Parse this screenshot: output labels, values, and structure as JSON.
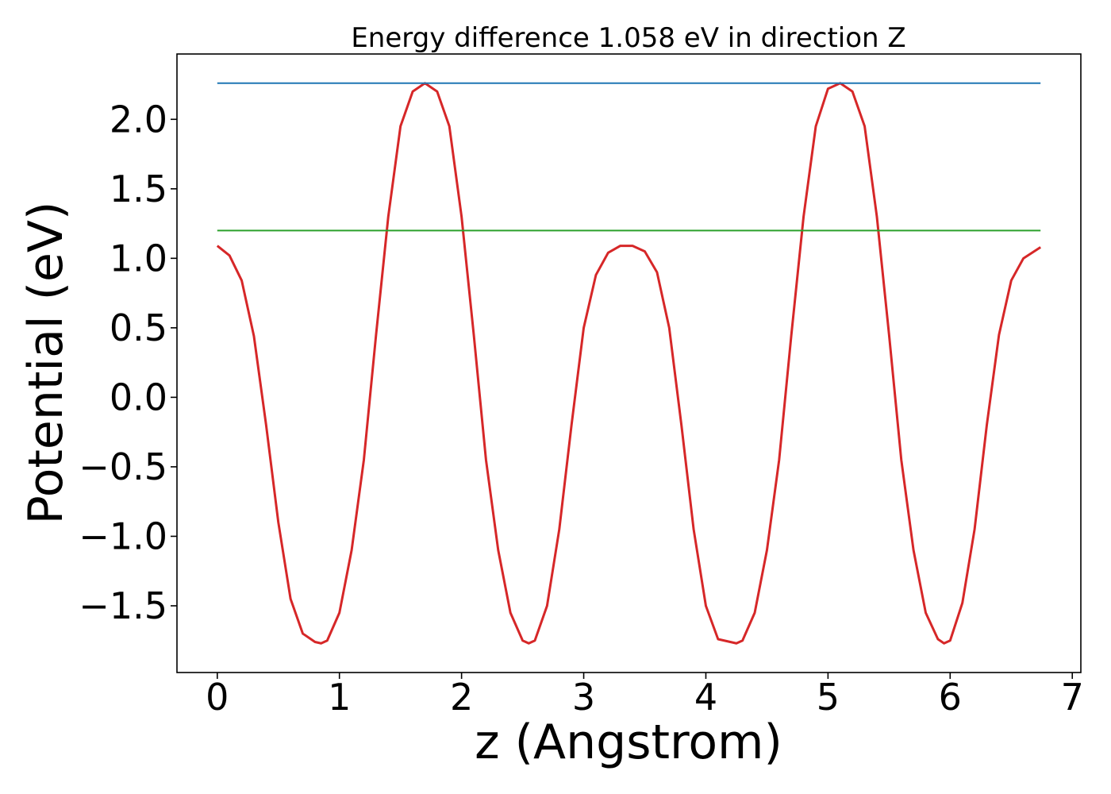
{
  "chart_data": {
    "type": "line",
    "title": "Energy difference 1.058 eV in direction Z",
    "xlabel": "z (Angstrom)",
    "ylabel": "Potential (eV)",
    "xlim": [
      -0.33,
      7.07
    ],
    "ylim": [
      -1.98,
      2.47
    ],
    "x_ticks": [
      0,
      1,
      2,
      3,
      4,
      5,
      6,
      7
    ],
    "x_tick_labels": [
      "0",
      "1",
      "2",
      "3",
      "4",
      "5",
      "6",
      "7"
    ],
    "y_ticks": [
      -1.5,
      -1.0,
      -0.5,
      0.0,
      0.5,
      1.0,
      1.5,
      2.0
    ],
    "y_tick_labels": [
      "−1.5",
      "−1.0",
      "−0.5",
      "0.0",
      "0.5",
      "1.0",
      "1.5",
      "2.0"
    ],
    "grid": false,
    "legend": "none",
    "series": [
      {
        "color": "#d62728",
        "x": [
          0.0,
          0.1,
          0.2,
          0.3,
          0.4,
          0.5,
          0.6,
          0.7,
          0.8,
          0.85,
          0.9,
          1.0,
          1.1,
          1.2,
          1.3,
          1.4,
          1.5,
          1.6,
          1.7,
          1.8,
          1.9,
          2.0,
          2.1,
          2.2,
          2.3,
          2.4,
          2.5,
          2.55,
          2.6,
          2.7,
          2.8,
          2.9,
          3.0,
          3.1,
          3.2,
          3.3,
          3.4,
          3.5,
          3.6,
          3.7,
          3.8,
          3.9,
          4.0,
          4.1,
          4.2,
          4.25,
          4.3,
          4.4,
          4.5,
          4.6,
          4.7,
          4.8,
          4.9,
          5.0,
          5.1,
          5.2,
          5.3,
          5.4,
          5.5,
          5.6,
          5.7,
          5.8,
          5.9,
          5.95,
          6.0,
          6.1,
          6.2,
          6.3,
          6.4,
          6.5,
          6.6,
          6.74
        ],
        "y": [
          1.09,
          1.02,
          0.84,
          0.44,
          -0.2,
          -0.9,
          -1.45,
          -1.7,
          -1.76,
          -1.77,
          -1.75,
          -1.55,
          -1.1,
          -0.45,
          0.45,
          1.3,
          1.95,
          2.2,
          2.26,
          2.2,
          1.95,
          1.3,
          0.45,
          -0.45,
          -1.1,
          -1.55,
          -1.75,
          -1.77,
          -1.75,
          -1.5,
          -0.95,
          -0.2,
          0.5,
          0.88,
          1.04,
          1.09,
          1.09,
          1.05,
          0.9,
          0.5,
          -0.2,
          -0.95,
          -1.5,
          -1.74,
          -1.76,
          -1.77,
          -1.75,
          -1.55,
          -1.1,
          -0.45,
          0.45,
          1.3,
          1.95,
          2.22,
          2.26,
          2.2,
          1.95,
          1.3,
          0.45,
          -0.45,
          -1.1,
          -1.55,
          -1.74,
          -1.77,
          -1.75,
          -1.48,
          -0.95,
          -0.2,
          0.45,
          0.84,
          1.0,
          1.08
        ]
      },
      {
        "color": "#1f77b4",
        "x": [
          0.0,
          6.74
        ],
        "y": [
          2.26,
          2.26
        ]
      },
      {
        "color": "#2ca02c",
        "x": [
          0.0,
          6.74
        ],
        "y": [
          1.2,
          1.2
        ]
      }
    ]
  }
}
